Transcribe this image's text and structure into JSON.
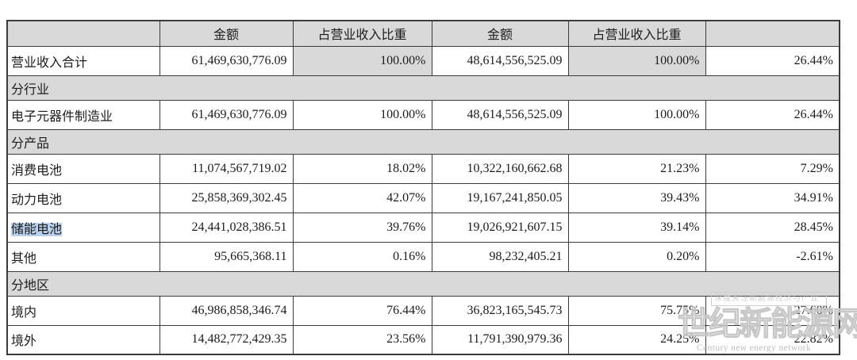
{
  "table": {
    "headers": [
      "",
      "金额",
      "占营业收入比重",
      "金额",
      "占营业收入比重",
      ""
    ],
    "rows": [
      {
        "type": "data",
        "label": "营业收入合计",
        "pct_shaded": true,
        "cells": [
          "61,469,630,776.09",
          "100.00%",
          "48,614,556,525.09",
          "100.00%",
          "26.44%"
        ]
      },
      {
        "type": "section",
        "label": "分行业"
      },
      {
        "type": "data",
        "label": "电子元器件制造业",
        "cells": [
          "61,469,630,776.09",
          "100.00%",
          "48,614,556,525.09",
          "100.00%",
          "26.44%"
        ]
      },
      {
        "type": "section",
        "label": "分产品"
      },
      {
        "type": "data",
        "label": "消费电池",
        "cells": [
          "11,074,567,719.02",
          "18.02%",
          "10,322,160,662.68",
          "21.23%",
          "7.29%"
        ]
      },
      {
        "type": "data",
        "label": "动力电池",
        "cells": [
          "25,858,369,302.45",
          "42.07%",
          "19,167,241,850.05",
          "39.43%",
          "34.91%"
        ]
      },
      {
        "type": "data",
        "label": "储能电池",
        "highlight": true,
        "cells": [
          "24,441,028,386.51",
          "39.76%",
          "19,026,921,607.15",
          "39.14%",
          "28.45%"
        ]
      },
      {
        "type": "data",
        "label": "其他",
        "cells": [
          "95,665,368.11",
          "0.16%",
          "98,232,405.21",
          "0.20%",
          "-2.61%"
        ]
      },
      {
        "type": "section",
        "label": "分地区"
      },
      {
        "type": "data",
        "label": "境内",
        "cells": [
          "46,986,858,346.74",
          "76.44%",
          "36,823,165,545.73",
          "75.75%",
          "27.60%"
        ]
      },
      {
        "type": "data",
        "label": "境外",
        "cells": [
          "14,482,772,429.35",
          "23.56%",
          "11,791,390,979.36",
          "24.25%",
          "22.82%"
        ]
      }
    ]
  },
  "watermark": {
    "tagline": "深度关注新能源经济与产业",
    "brand": "世纪新能源网",
    "brand_en": "Century new energy network"
  },
  "colors": {
    "header_bg": "#d9d9d9",
    "section_bg": "#d9d9d9",
    "shaded_cell_bg": "#d9d9d9",
    "selection_highlight": "#b9d1ec",
    "border": "#3b3b3b",
    "watermark_gray": "#c7c7c7"
  }
}
